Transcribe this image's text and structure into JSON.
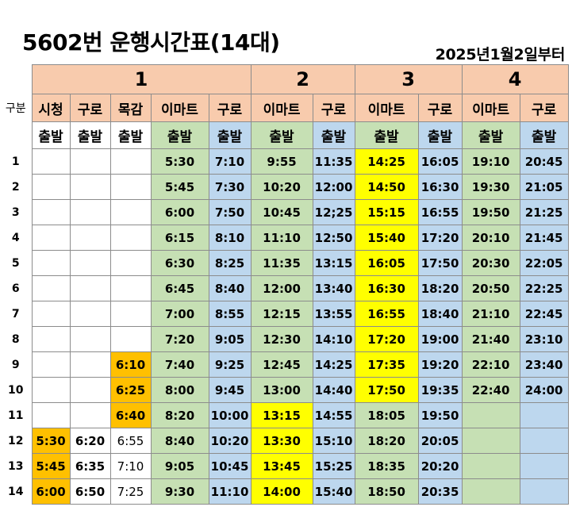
{
  "title": "5602번 운행시간표(14대)",
  "effective_date": "2025년1월2일부터",
  "row_header_label": "구분",
  "groups": [
    "1",
    "2",
    "3",
    "4"
  ],
  "columns": [
    "시청",
    "구로",
    "목감",
    "이마트",
    "구로",
    "이마트",
    "구로",
    "이마트",
    "구로",
    "이마트",
    "구로"
  ],
  "subheader": [
    "출발",
    "출발",
    "출발",
    "출발",
    "출발",
    "출발",
    "출발",
    "출발",
    "출발",
    "출발",
    "출발"
  ],
  "rows": [
    {
      "n": "1",
      "cells": [
        "",
        "",
        "",
        "5:30",
        "7:10",
        "9:55",
        "11:35",
        "14:25",
        "16:05",
        "19:10",
        "20:45"
      ]
    },
    {
      "n": "2",
      "cells": [
        "",
        "",
        "",
        "5:45",
        "7:30",
        "10:20",
        "12:00",
        "14:50",
        "16:30",
        "19:30",
        "21:05"
      ]
    },
    {
      "n": "3",
      "cells": [
        "",
        "",
        "",
        "6:00",
        "7:50",
        "10:45",
        "12;25",
        "15:15",
        "16:55",
        "19:50",
        "21:25"
      ]
    },
    {
      "n": "4",
      "cells": [
        "",
        "",
        "",
        "6:15",
        "8:10",
        "11:10",
        "12:50",
        "15:40",
        "17:20",
        "20:10",
        "21:45"
      ]
    },
    {
      "n": "5",
      "cells": [
        "",
        "",
        "",
        "6:30",
        "8:25",
        "11:35",
        "13:15",
        "16:05",
        "17:50",
        "20:30",
        "22:05"
      ]
    },
    {
      "n": "6",
      "cells": [
        "",
        "",
        "",
        "6:45",
        "8:40",
        "12:00",
        "13:40",
        "16:30",
        "18:20",
        "20:50",
        "22:25"
      ]
    },
    {
      "n": "7",
      "cells": [
        "",
        "",
        "",
        "7:00",
        "8:55",
        "12:15",
        "13:55",
        "16:55",
        "18:40",
        "21:10",
        "22:45"
      ]
    },
    {
      "n": "8",
      "cells": [
        "",
        "",
        "",
        "7:20",
        "9:05",
        "12:30",
        "14:10",
        "17:20",
        "19:00",
        "21:40",
        "23:10"
      ]
    },
    {
      "n": "9",
      "cells": [
        "",
        "",
        "6:10",
        "7:40",
        "9:25",
        "12:45",
        "14:25",
        "17:35",
        "19:20",
        "22:10",
        "23:40"
      ]
    },
    {
      "n": "10",
      "cells": [
        "",
        "",
        "6:25",
        "8:00",
        "9:45",
        "13:00",
        "14:40",
        "17:50",
        "19:35",
        "22:40",
        "24:00"
      ]
    },
    {
      "n": "11",
      "cells": [
        "",
        "",
        "6:40",
        "8:20",
        "10:00",
        "13:15",
        "14:55",
        "18:05",
        "19:50",
        "",
        ""
      ]
    },
    {
      "n": "12",
      "cells": [
        "5:30",
        "6:20",
        "6:55",
        "8:40",
        "10:20",
        "13:30",
        "15:10",
        "18:20",
        "20:05",
        "",
        ""
      ]
    },
    {
      "n": "13",
      "cells": [
        "5:45",
        "6:35",
        "7:10",
        "9:05",
        "10:45",
        "13:45",
        "15:25",
        "18:35",
        "20:20",
        "",
        ""
      ]
    },
    {
      "n": "14",
      "cells": [
        "6:00",
        "6:50",
        "7:25",
        "9:30",
        "11:10",
        "14:00",
        "15:40",
        "18:50",
        "20:35",
        "",
        ""
      ]
    }
  ],
  "colors": {
    "header_bg": "#f8cbad",
    "imart_bg": "#c6e0b4",
    "guro_bg": "#bdd7ee",
    "highlight_yellow": "#ffff00",
    "highlight_orange": "#ffc000",
    "grid": "#8c8c8c"
  }
}
